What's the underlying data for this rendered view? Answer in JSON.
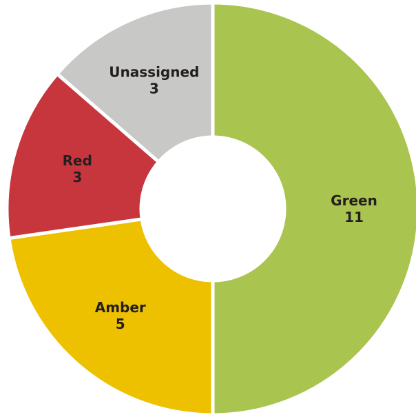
{
  "chart_data": {
    "type": "pie",
    "donut": true,
    "title": "",
    "categories": [
      "Green",
      "Amber",
      "Red",
      "Unassigned"
    ],
    "values": [
      11,
      5,
      3,
      3
    ],
    "colors": [
      "#a9c44f",
      "#eec100",
      "#c8363d",
      "#c8c8c7"
    ],
    "direction": "clockwise",
    "start": "top",
    "legend": "none",
    "labels": [
      {
        "name": "Green",
        "value": "11"
      },
      {
        "name": "Amber",
        "value": "5"
      },
      {
        "name": "Red",
        "value": "3"
      },
      {
        "name": "Unassigned",
        "value": "3"
      }
    ]
  }
}
